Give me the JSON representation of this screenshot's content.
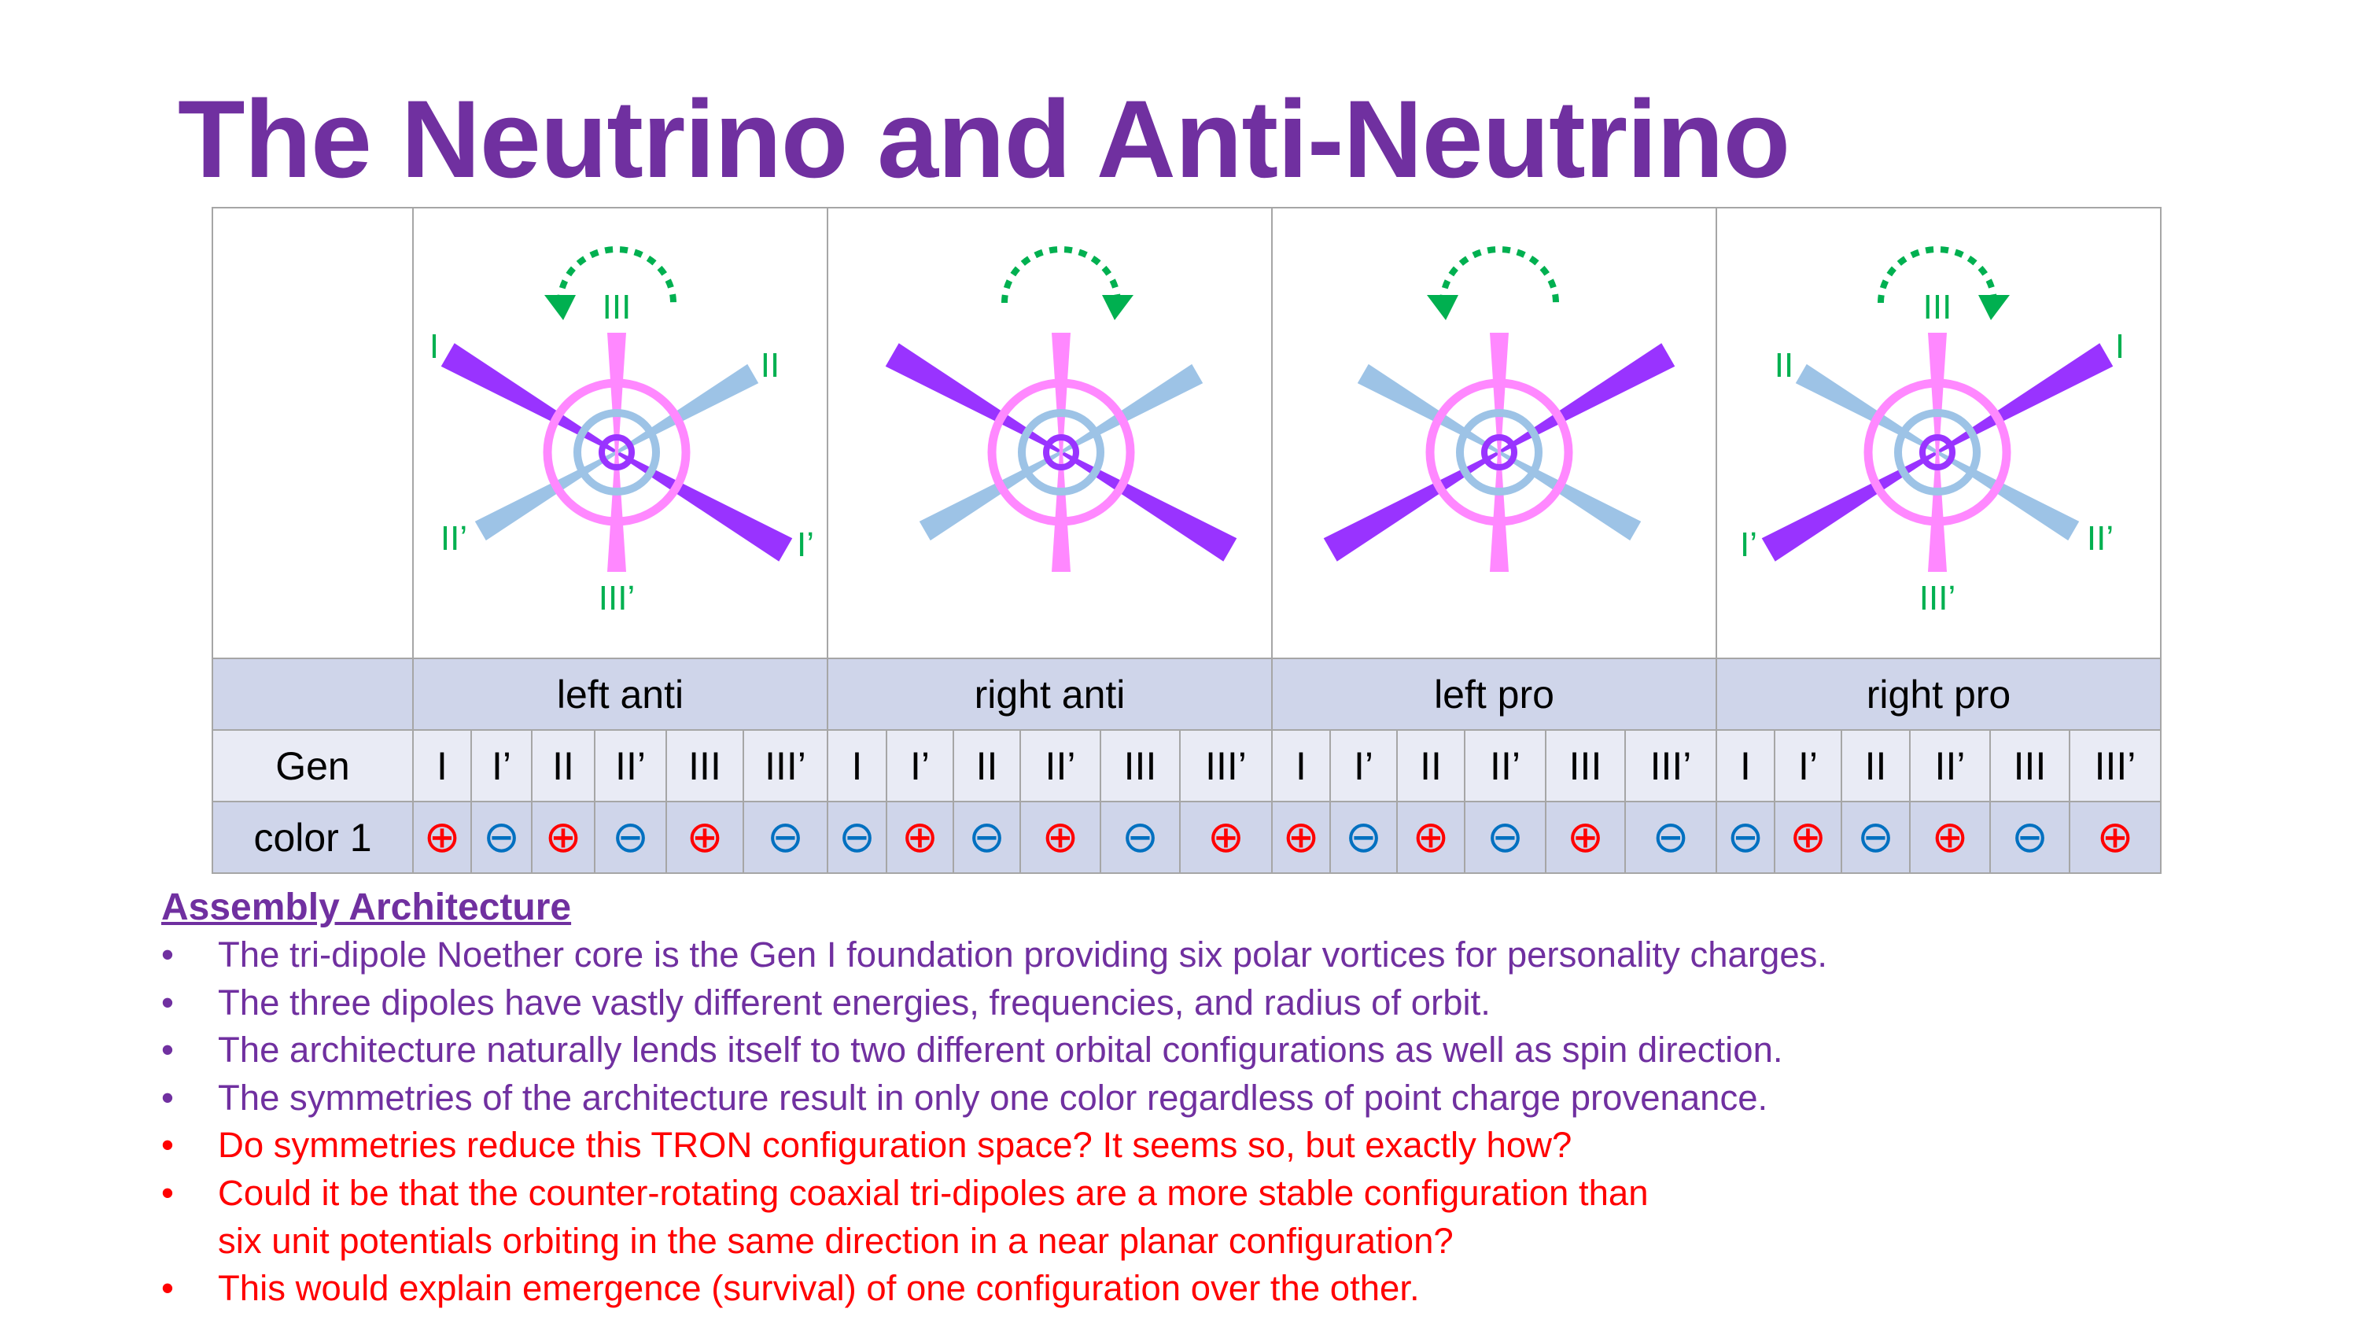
{
  "title": "The Neutrino and Anti-Neutrino",
  "colors": {
    "title": "#7030a0",
    "label_green": "#00b050",
    "dipole_I": "#9933ff",
    "dipole_II": "#9dc3e6",
    "dipole_III": "#ff88ff",
    "plus": "#ff0000",
    "minus": "#0070c0",
    "header_bg": "#cfd5ea",
    "gen_bg": "#e9ebf5",
    "question_text": "#ff0000"
  },
  "diagrams": [
    {
      "name": "left anti",
      "rotation": "counterclockwise",
      "dipole_I_orientation": "upper-left to lower-right",
      "labels": {
        "I": "I",
        "I_prime": "I’",
        "II": "II",
        "II_prime": "II’",
        "III": "III",
        "III_prime": "III’"
      }
    },
    {
      "name": "right anti",
      "rotation": "clockwise",
      "dipole_I_orientation": "upper-left to lower-right"
    },
    {
      "name": "left pro",
      "rotation": "counterclockwise",
      "dipole_I_orientation": "upper-right to lower-left"
    },
    {
      "name": "right pro",
      "rotation": "clockwise",
      "dipole_I_orientation": "upper-right to lower-left",
      "labels": {
        "I": "I",
        "I_prime": "I’",
        "II": "II",
        "II_prime": "II’",
        "III": "III",
        "III_prime": "III’"
      }
    }
  ],
  "table": {
    "groups": [
      "left anti",
      "right anti",
      "left pro",
      "right pro"
    ],
    "gen_label": "Gen",
    "gens": [
      "I",
      "I’",
      "II",
      "II’",
      "III",
      "III’"
    ],
    "color_label": "color 1",
    "colors_row": [
      [
        "⊕",
        "⊖",
        "⊕",
        "⊖",
        "⊕",
        "⊖"
      ],
      [
        "⊖",
        "⊕",
        "⊖",
        "⊕",
        "⊖",
        "⊕"
      ],
      [
        "⊕",
        "⊖",
        "⊕",
        "⊖",
        "⊕",
        "⊖"
      ],
      [
        "⊖",
        "⊕",
        "⊖",
        "⊕",
        "⊖",
        "⊕"
      ]
    ]
  },
  "notes": {
    "heading": "Assembly Architecture",
    "bullet_char": "•",
    "items": [
      {
        "text": "The tri-dipole Noether core is the Gen I foundation providing six polar vortices for personality charges.",
        "color": "#7030a0"
      },
      {
        "text": "The three dipoles have vastly different energies, frequencies, and radius of orbit.",
        "color": "#7030a0"
      },
      {
        "text": "The architecture naturally lends itself to two different orbital configurations as well as spin direction.",
        "color": "#7030a0"
      },
      {
        "text": "The symmetries of the architecture result in only one color regardless of point charge provenance.",
        "color": "#7030a0"
      },
      {
        "text": "Do symmetries reduce this TRON configuration space? It seems so, but exactly how?",
        "color": "#ff0000"
      },
      {
        "text": "Could it be that the counter-rotating coaxial tri-dipoles are a more stable configuration than",
        "continuation": "six unit potentials orbiting in the same direction in a near planar configuration?",
        "color": "#ff0000"
      },
      {
        "text": "This would explain emergence (survival) of one configuration over the other.",
        "color": "#ff0000"
      }
    ]
  }
}
